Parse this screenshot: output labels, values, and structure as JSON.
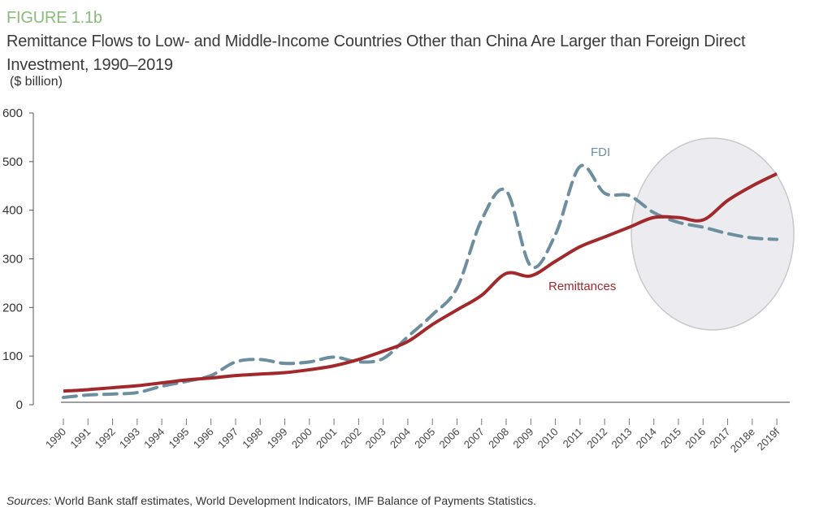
{
  "chart_data": {
    "type": "line",
    "figure_label": "FIGURE 1.1b",
    "title": "Remittance Flows to Low- and Middle-Income Countries Other than China Are Larger than Foreign Direct Investment, 1990–2019",
    "ylabel": "($ billion)",
    "xlabel": "",
    "ylim": [
      0,
      600
    ],
    "yticks": [
      0,
      100,
      200,
      300,
      400,
      500,
      600
    ],
    "grid": false,
    "categories": [
      "1990",
      "1991",
      "1992",
      "1993",
      "1994",
      "1995",
      "1996",
      "1997",
      "1998",
      "1999",
      "2000",
      "2001",
      "2002",
      "2003",
      "2004",
      "2005",
      "2006",
      "2007",
      "2008",
      "2009",
      "2010",
      "2011",
      "2012",
      "2013",
      "2014",
      "2015",
      "2016",
      "2017",
      "2018e",
      "2019f"
    ],
    "series": [
      {
        "name": "Remittances",
        "color": "#a3282b",
        "style": "solid",
        "values": [
          28,
          31,
          35,
          39,
          45,
          51,
          55,
          60,
          63,
          66,
          72,
          80,
          93,
          110,
          130,
          165,
          195,
          225,
          270,
          265,
          295,
          325,
          345,
          365,
          385,
          385,
          380,
          420,
          450,
          475
        ]
      },
      {
        "name": "FDI",
        "color": "#6c8e9f",
        "style": "dashed",
        "values": [
          15,
          20,
          22,
          25,
          38,
          48,
          60,
          88,
          93,
          85,
          88,
          98,
          88,
          95,
          140,
          185,
          240,
          380,
          440,
          285,
          350,
          490,
          435,
          430,
          395,
          375,
          365,
          352,
          343,
          340
        ]
      }
    ],
    "annotations": [
      {
        "type": "ellipse",
        "highlight": "2014–2019f projections",
        "fill": "#ececf0",
        "stroke": "#c8c8cc"
      }
    ],
    "source_label": "Sources:",
    "source_text": " World Bank staff estimates, World Development Indicators, IMF Balance of Payments Statistics."
  }
}
